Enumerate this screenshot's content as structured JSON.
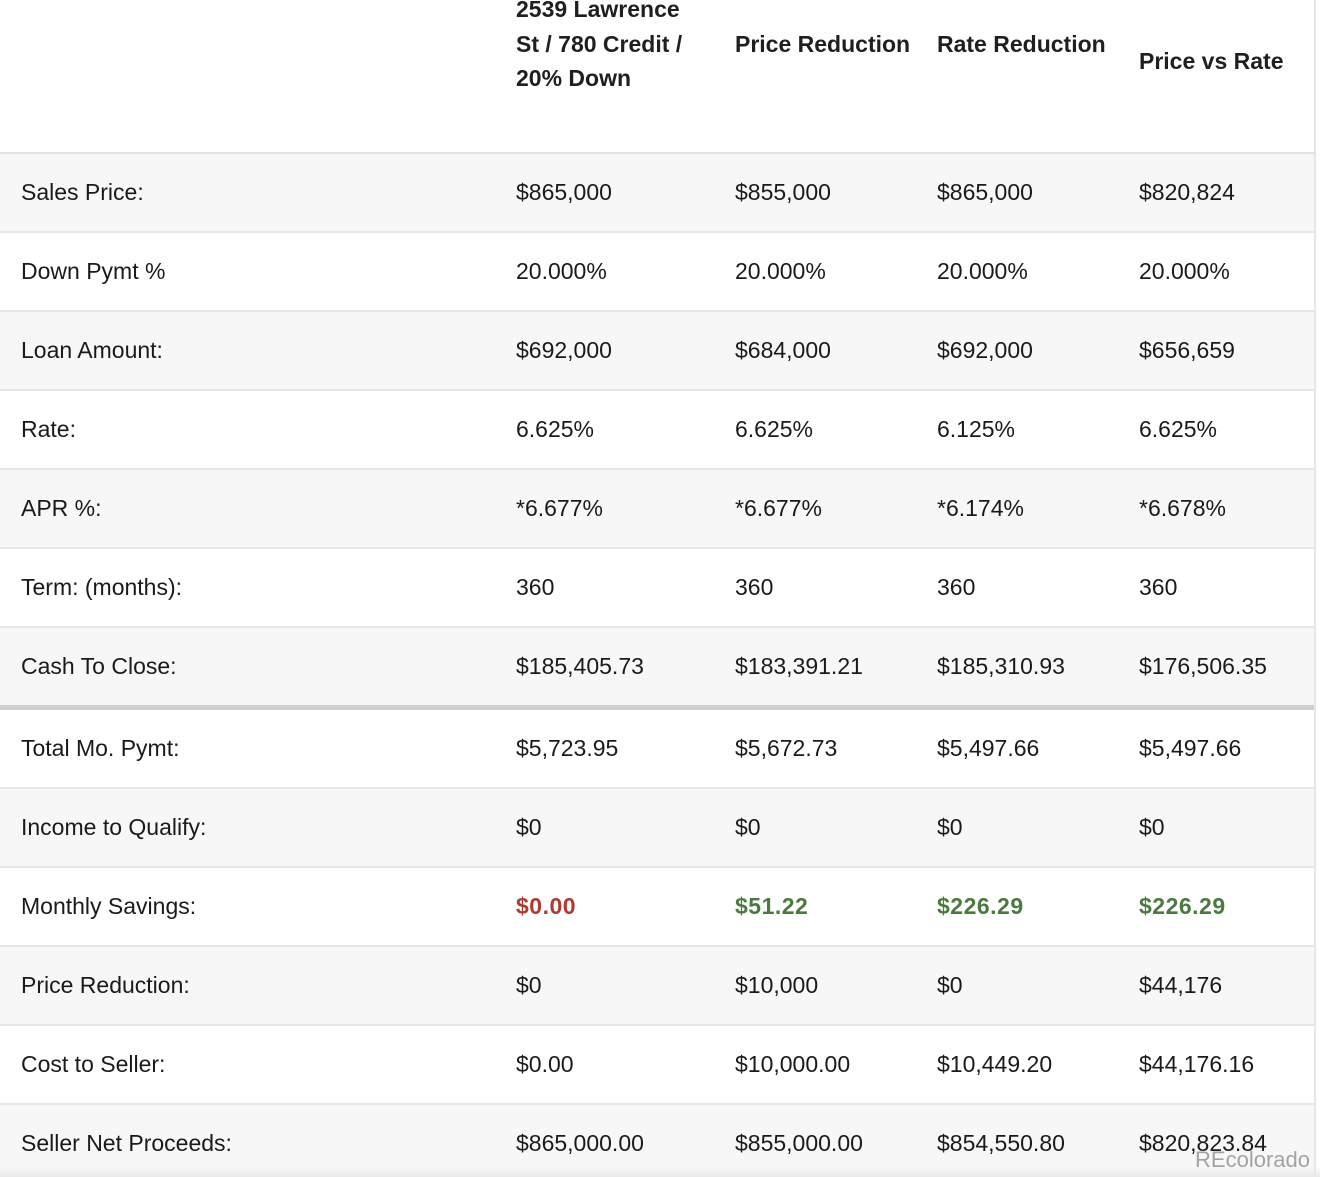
{
  "header": {
    "col1": "2539 Lawrence St / 780 Credit / 20% Down",
    "col2": "Price Reduction",
    "col3": "Rate Reduction",
    "col4": "Price vs Rate"
  },
  "rows": [
    {
      "label": "Sales Price:",
      "v1": "$865,000",
      "v2": "$855,000",
      "v3": "$865,000",
      "v4": "$820,824"
    },
    {
      "label": "Down Pymt %",
      "v1": "20.000%",
      "v2": "20.000%",
      "v3": "20.000%",
      "v4": "20.000%"
    },
    {
      "label": "Loan Amount:",
      "v1": "$692,000",
      "v2": "$684,000",
      "v3": "$692,000",
      "v4": "$656,659"
    },
    {
      "label": "Rate:",
      "v1": "6.625%",
      "v2": "6.625%",
      "v3": "6.125%",
      "v4": "6.625%"
    },
    {
      "label": "APR %:",
      "v1": "*6.677%",
      "v2": "*6.677%",
      "v3": "*6.174%",
      "v4": "*6.678%"
    },
    {
      "label": "Term: (months):",
      "v1": "360",
      "v2": "360",
      "v3": "360",
      "v4": "360"
    },
    {
      "label": "Cash To Close:",
      "v1": "$185,405.73",
      "v2": "$183,391.21",
      "v3": "$185,310.93",
      "v4": "$176,506.35"
    },
    {
      "label": "Total Mo. Pymt:",
      "v1": "$5,723.95",
      "v2": "$5,672.73",
      "v3": "$5,497.66",
      "v4": "$5,497.66"
    },
    {
      "label": "Income to Qualify:",
      "v1": "$0",
      "v2": "$0",
      "v3": "$0",
      "v4": "$0"
    },
    {
      "label": "Monthly Savings:",
      "v1": "$0.00",
      "v2": "$51.22",
      "v3": "$226.29",
      "v4": "$226.29"
    },
    {
      "label": "Price Reduction:",
      "v1": "$0",
      "v2": "$10,000",
      "v3": "$0",
      "v4": "$44,176"
    },
    {
      "label": "Cost to Seller:",
      "v1": "$0.00",
      "v2": "$10,000.00",
      "v3": "$10,449.20",
      "v4": "$44,176.16"
    },
    {
      "label": "Seller Net Proceeds:",
      "v1": "$865,000.00",
      "v2": "$855,000.00",
      "v3": "$854,550.80",
      "v4": "$820,823.84"
    }
  ],
  "colors": {
    "savings_zero": "#b03a2e",
    "savings_positive": "#4a7a3e"
  },
  "watermark": "REcolorado"
}
